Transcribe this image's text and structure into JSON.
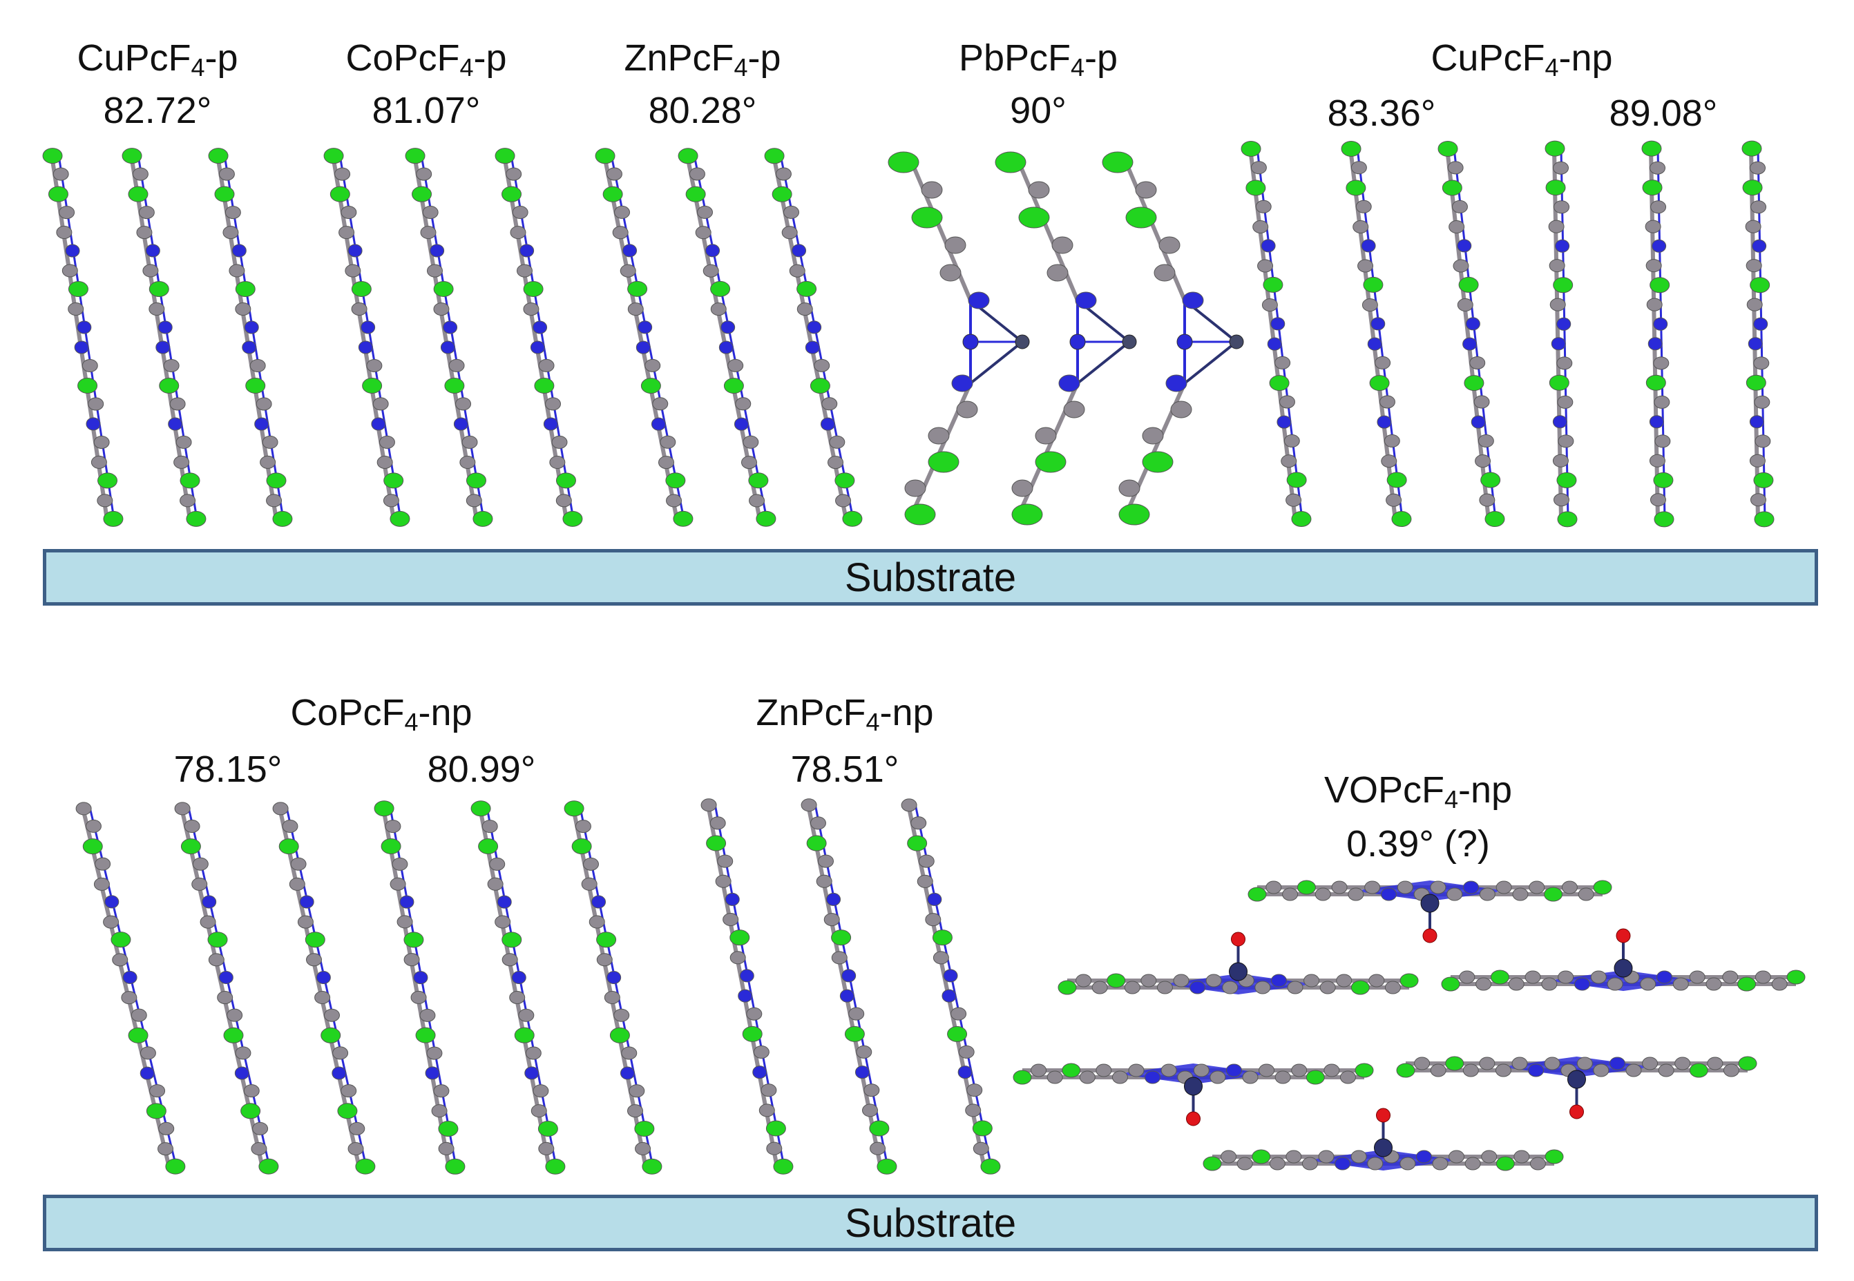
{
  "colors": {
    "carbon": "#8f8a92",
    "nitrogen": "#2a2ad8",
    "fluorine": "#22d41f",
    "oxygen": "#e0161c",
    "metal": "#2b3270",
    "substrate_fill": "#b7dde8",
    "substrate_border": "#3d5f86"
  },
  "substrate_label": "Substrate",
  "top_panel": {
    "CuPcF4_p": {
      "prefix": "CuPcF",
      "sub": "4",
      "suffix": "-p",
      "angle": "82.72°"
    },
    "CoPcF4_p": {
      "prefix": "CoPcF",
      "sub": "4",
      "suffix": "-p",
      "angle": "81.07°"
    },
    "ZnPcF4_p": {
      "prefix": "ZnPcF",
      "sub": "4",
      "suffix": "-p",
      "angle": "80.28°"
    },
    "PbPcF4_p": {
      "prefix": "PbPcF",
      "sub": "4",
      "suffix": "-p",
      "angle": "90°"
    },
    "CuPcF4_np": {
      "prefix": "CuPcF",
      "sub": "4",
      "suffix": "-np",
      "angle_a": "83.36°",
      "angle_b": "89.08°"
    }
  },
  "bottom_panel": {
    "CoPcF4_np": {
      "prefix": "CoPcF",
      "sub": "4",
      "suffix": "-np",
      "angle_a": "78.15°",
      "angle_b": "80.99°"
    },
    "ZnPcF4_np": {
      "prefix": "ZnPcF",
      "sub": "4",
      "suffix": "-np",
      "angle": "78.51°"
    },
    "VOPcF4_np": {
      "prefix": "VOPcF",
      "sub": "4",
      "suffix": "-np",
      "angle": "0.39° (?)"
    }
  }
}
